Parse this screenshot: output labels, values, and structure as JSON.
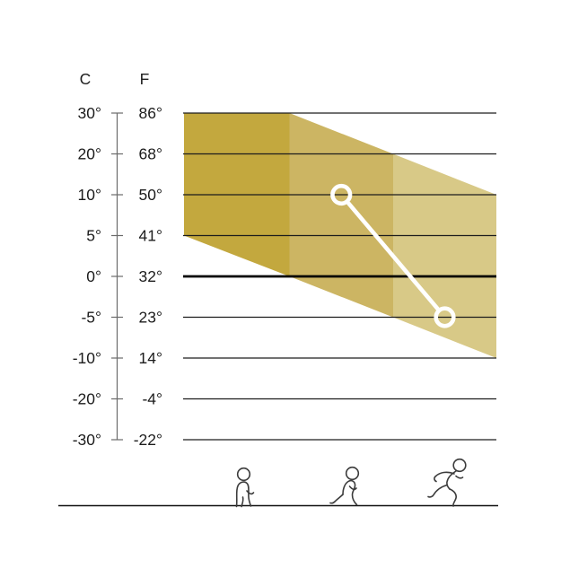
{
  "chart_data": {
    "type": "area",
    "title": "",
    "scale": {
      "c_header": "C",
      "f_header": "F",
      "rows": [
        {
          "c": "30°",
          "f": "86°"
        },
        {
          "c": "20°",
          "f": "68°"
        },
        {
          "c": "10°",
          "f": "50°"
        },
        {
          "c": "5°",
          "f": "41°"
        },
        {
          "c": "0°",
          "f": "32°"
        },
        {
          "c": "-5°",
          "f": "23°"
        },
        {
          "c": "-10°",
          "f": "14°"
        },
        {
          "c": "-20°",
          "f": "-4°"
        },
        {
          "c": "-30°",
          "f": "-22°"
        }
      ],
      "bold_row": "0°"
    },
    "band": {
      "columns": [
        {
          "activity": "walking",
          "top_c": [
            30,
            30
          ],
          "bottom_c": [
            5,
            0
          ],
          "color": "#c3a83e"
        },
        {
          "activity": "jogging",
          "top_c": [
            30,
            20
          ],
          "bottom_c": [
            0,
            -5
          ],
          "color": "#ccb563"
        },
        {
          "activity": "sprinting",
          "top_c": [
            20,
            10
          ],
          "bottom_c": [
            -5,
            -10
          ],
          "color": "#d8c987"
        }
      ]
    },
    "line_series": {
      "color": "#ffffff",
      "points": [
        {
          "activity": "jogging",
          "c": 10
        },
        {
          "activity": "sprinting",
          "c": -5
        }
      ]
    },
    "activity_icons": [
      {
        "name": "walking-icon"
      },
      {
        "name": "jogging-icon"
      },
      {
        "name": "sprinting-icon"
      }
    ],
    "colors": {
      "grid": "#1c1c1c",
      "zero_line": "#000000",
      "scale_axis": "#6b6b6b",
      "label": "#1c1c1c",
      "icon_stroke": "#3c3c3c",
      "baseline": "#111111"
    },
    "layout_hints": {
      "grid": "horizontal lines at each labeled temperature",
      "dual_axis": "Celsius and Fahrenheit side-by-side on left",
      "legend": "none"
    }
  }
}
